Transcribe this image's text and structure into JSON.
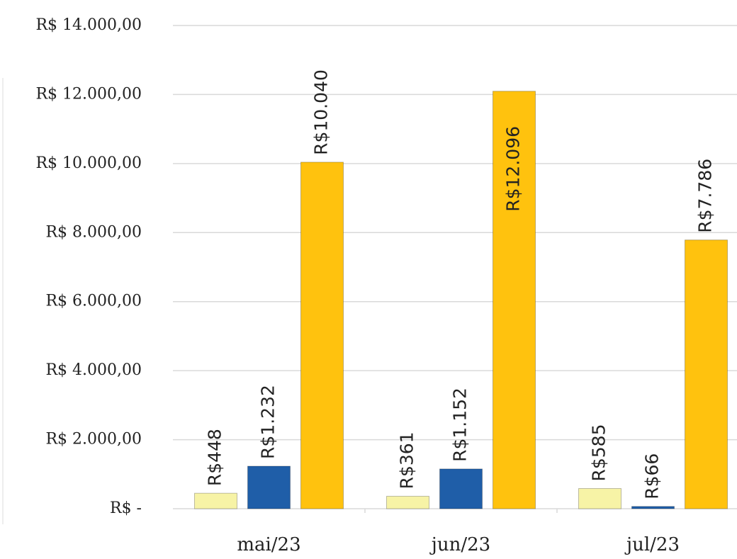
{
  "chart_data": {
    "type": "bar",
    "categories": [
      "mai/23",
      "jun/23",
      "jul/23"
    ],
    "series": [
      {
        "color": "#f7f3a6",
        "values": [
          448,
          361,
          585
        ],
        "value_labels": [
          "R$448",
          "R$361",
          "R$585"
        ]
      },
      {
        "color": "#1f5ea8",
        "values": [
          1232,
          1152,
          66
        ],
        "value_labels": [
          "R$1.232",
          "R$1.152",
          "R$66"
        ]
      },
      {
        "color": "#ffc20e",
        "values": [
          10040,
          12096,
          7786
        ],
        "value_labels": [
          "R$10.040",
          "R$12.096",
          "R$7.786"
        ]
      }
    ],
    "ylim": [
      0,
      14000
    ],
    "yticks": [
      {
        "value": 0,
        "label": "R$ -"
      },
      {
        "value": 2000,
        "label": "R$ 2.000,00"
      },
      {
        "value": 4000,
        "label": "R$ 4.000,00"
      },
      {
        "value": 6000,
        "label": "R$ 6.000,00"
      },
      {
        "value": 8000,
        "label": "R$ 8.000,00"
      },
      {
        "value": 10000,
        "label": "R$ 10.000,00"
      },
      {
        "value": 12000,
        "label": "R$ 12.000,00"
      },
      {
        "value": 14000,
        "label": "R$ 14.000,00"
      }
    ],
    "grid": true
  }
}
